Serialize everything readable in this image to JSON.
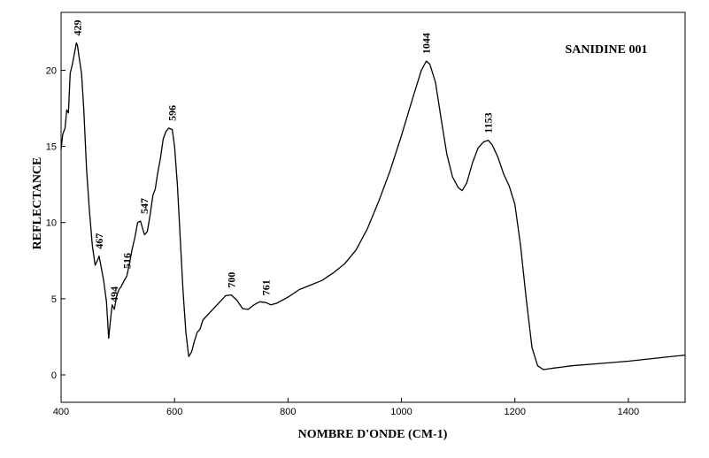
{
  "chart_data": {
    "type": "line",
    "title": "SANIDINE 001",
    "xlabel": "NOMBRE D'ONDE (CM-1)",
    "ylabel": "REFLECTANCE",
    "xlim": [
      400,
      1500
    ],
    "ylim": [
      -1.8,
      23.8
    ],
    "x_ticks": [
      400,
      600,
      800,
      1000,
      1200,
      1400
    ],
    "y_ticks": [
      0,
      5,
      10,
      15,
      20
    ],
    "grid": false,
    "series": [
      {
        "x": [
          400,
          403,
          407,
          410,
          413,
          416,
          420,
          424,
          427,
          429,
          432,
          436,
          440,
          445,
          450,
          455,
          460,
          465,
          467,
          470,
          475,
          480,
          484,
          487,
          490,
          494,
          498,
          502,
          506,
          510,
          516,
          520,
          525,
          530,
          535,
          540,
          547,
          552,
          557,
          562,
          566,
          570,
          575,
          580,
          585,
          590,
          596,
          600,
          605,
          610,
          615,
          620,
          625,
          630,
          635,
          640,
          645,
          650,
          655,
          660,
          670,
          680,
          690,
          700,
          710,
          720,
          730,
          740,
          750,
          761,
          770,
          780,
          800,
          820,
          840,
          860,
          880,
          900,
          920,
          940,
          960,
          980,
          1000,
          1020,
          1035,
          1044,
          1050,
          1060,
          1070,
          1080,
          1090,
          1100,
          1107,
          1115,
          1125,
          1135,
          1145,
          1153,
          1160,
          1170,
          1180,
          1190,
          1200,
          1210,
          1220,
          1230,
          1240,
          1250,
          1260,
          1270,
          1280,
          1300,
          1350,
          1400,
          1450,
          1500
        ],
        "y": [
          14.8,
          15.8,
          16.2,
          17.4,
          17.2,
          19.8,
          20.4,
          21.2,
          21.8,
          21.6,
          20.8,
          19.8,
          17.5,
          13.5,
          10.8,
          8.5,
          7.2,
          7.6,
          7.8,
          7.2,
          6.2,
          4.8,
          2.4,
          3.6,
          4.6,
          4.3,
          5.2,
          5.6,
          5.8,
          6.1,
          6.5,
          7.2,
          8.2,
          9.0,
          10.0,
          10.1,
          9.2,
          9.4,
          10.5,
          11.8,
          12.2,
          13.2,
          14.2,
          15.5,
          16.0,
          16.2,
          16.1,
          15.0,
          12.5,
          9.0,
          5.5,
          2.8,
          1.2,
          1.5,
          2.2,
          2.8,
          3.0,
          3.6,
          3.8,
          4.0,
          4.4,
          4.8,
          5.2,
          5.25,
          4.9,
          4.35,
          4.3,
          4.6,
          4.8,
          4.75,
          4.6,
          4.7,
          5.1,
          5.6,
          5.9,
          6.2,
          6.7,
          7.3,
          8.2,
          9.6,
          11.4,
          13.4,
          15.7,
          18.2,
          20.0,
          20.6,
          20.4,
          19.2,
          16.8,
          14.5,
          13.0,
          12.3,
          12.1,
          12.6,
          13.9,
          14.9,
          15.3,
          15.4,
          15.1,
          14.3,
          13.2,
          12.4,
          11.2,
          8.5,
          5.0,
          1.8,
          0.6,
          0.35,
          0.4,
          0.45,
          0.5,
          0.6,
          0.75,
          0.9,
          1.1,
          1.3
        ],
        "annotations": [
          {
            "x": 429,
            "y": 21.8,
            "label": "429"
          },
          {
            "x": 467,
            "y": 7.8,
            "label": "467"
          },
          {
            "x": 494,
            "y": 4.3,
            "label": "494"
          },
          {
            "x": 516,
            "y": 6.5,
            "label": "516"
          },
          {
            "x": 547,
            "y": 10.1,
            "label": "547"
          },
          {
            "x": 596,
            "y": 16.2,
            "label": "596"
          },
          {
            "x": 700,
            "y": 5.25,
            "label": "700"
          },
          {
            "x": 761,
            "y": 4.75,
            "label": "761"
          },
          {
            "x": 1044,
            "y": 20.6,
            "label": "1044"
          },
          {
            "x": 1153,
            "y": 15.4,
            "label": "1153"
          }
        ]
      }
    ]
  }
}
